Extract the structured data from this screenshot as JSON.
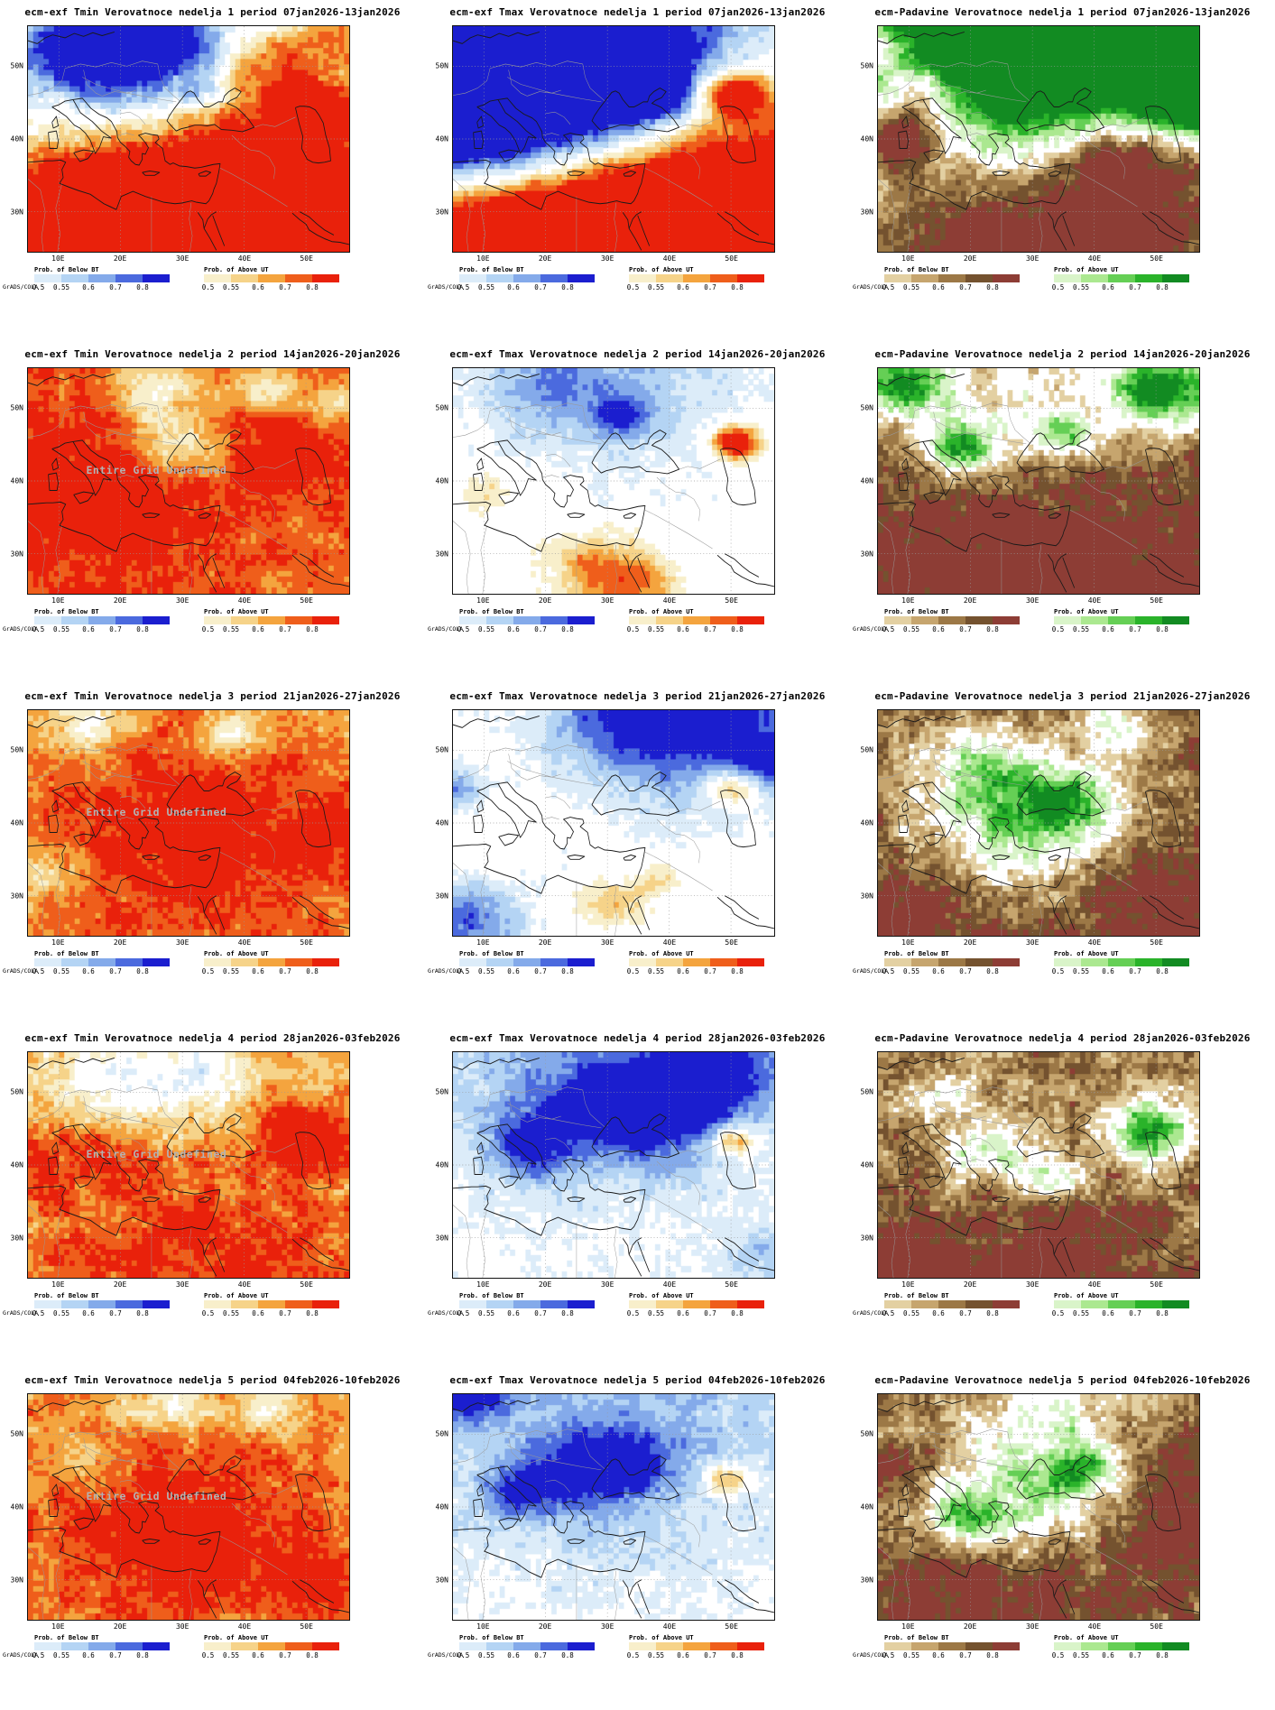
{
  "credit": "GrADS/COLA",
  "watermark": "Entire Grid Undefined",
  "axes": {
    "lat_labels": [
      "50N",
      "40N",
      "30N"
    ],
    "lon_labels": [
      "10E",
      "20E",
      "30E",
      "40E",
      "50E"
    ]
  },
  "legend": {
    "below_label": "Prob. of Below BT",
    "above_label": "Prob. of Above UT",
    "ticks": [
      "0.5",
      "0.55",
      "0.6",
      "0.7",
      "0.8"
    ]
  },
  "ramps": {
    "temp_below": [
      "#dcecf9",
      "#b4d4f4",
      "#84aaea",
      "#4b6ade",
      "#1b1ecf"
    ],
    "temp_above": [
      "#f8efcb",
      "#f6d389",
      "#f4a43e",
      "#ef5e1b",
      "#e9210b"
    ],
    "precip_below": [
      "#e3d0a2",
      "#c6a56e",
      "#9c7846",
      "#74522f",
      "#8d3d35"
    ],
    "precip_above": [
      "#d9f4c9",
      "#abe890",
      "#65cf55",
      "#2ab32a",
      "#128b22"
    ]
  },
  "panels": [
    {
      "id": "tmin-week1",
      "title": "ecm-exf Tmin Verovatnoce nedelja 1 period 07jan2026-13jan2026",
      "ramp": "temp",
      "wm": false,
      "seed": 11,
      "base": 0,
      "noise": 0.55,
      "jitter": 0.35,
      "blobs": [
        [
          0.3,
          0.15,
          0.2,
          -1.9
        ],
        [
          0.14,
          0.1,
          0.12,
          -1.1
        ],
        [
          0.47,
          0.07,
          0.1,
          -0.9
        ],
        [
          0.55,
          0.3,
          0.05,
          -0.8
        ],
        [
          0.5,
          1.02,
          0.42,
          2.0
        ],
        [
          0.13,
          0.93,
          0.25,
          1.5
        ],
        [
          0.83,
          0.75,
          0.3,
          1.6
        ],
        [
          0.88,
          0.36,
          0.08,
          1.8
        ],
        [
          0.75,
          0.2,
          0.1,
          0.9
        ],
        [
          0.95,
          0.05,
          0.1,
          1.1
        ]
      ]
    },
    {
      "id": "tmax-week1",
      "title": "ecm-exf Tmax Verovatnoce nedelja 1 period 07jan2026-13jan2026",
      "ramp": "temp",
      "wm": false,
      "seed": 21,
      "base": 0,
      "noise": 0.4,
      "jitter": 0.25,
      "blobs": [
        [
          0.18,
          0.08,
          0.45,
          -3.0
        ],
        [
          0.02,
          0.4,
          0.25,
          -2.2
        ],
        [
          0.45,
          0.22,
          0.22,
          -1.5
        ],
        [
          0.63,
          0.3,
          0.08,
          -1.5
        ],
        [
          0.55,
          1.08,
          0.5,
          2.6
        ],
        [
          0.15,
          1.0,
          0.3,
          2.0
        ],
        [
          0.92,
          0.8,
          0.28,
          1.8
        ],
        [
          0.88,
          0.3,
          0.07,
          2.3
        ]
      ]
    },
    {
      "id": "padavine-week1",
      "title": "ecm-Padavine Verovatnoce nedelja 1 period 07jan2026-13jan2026",
      "ramp": "precip",
      "wm": false,
      "seed": 31,
      "base": 0.1,
      "noise": 0.7,
      "jitter": 0.5,
      "blobs": [
        [
          0.5,
          0.12,
          0.4,
          2.0
        ],
        [
          0.8,
          0.22,
          0.28,
          1.9
        ],
        [
          0.25,
          0.15,
          0.2,
          1.2
        ],
        [
          0.96,
          0.38,
          0.1,
          1.5
        ],
        [
          0.5,
          1.05,
          0.45,
          -2.4
        ],
        [
          0.08,
          0.48,
          0.1,
          -2.2
        ],
        [
          0.14,
          0.27,
          0.09,
          -1.5
        ],
        [
          0.88,
          0.6,
          0.18,
          -1.6
        ],
        [
          0.7,
          0.55,
          0.12,
          -1.2
        ],
        [
          0.03,
          0.1,
          0.07,
          -1.2
        ]
      ]
    },
    {
      "id": "tmin-week2",
      "title": "ecm-exf Tmin Verovatnoce nedelja 2 period 14jan2026-20jan2026",
      "ramp": "temp",
      "wm": true,
      "seed": 41,
      "base": 1.2,
      "noise": 0.5,
      "jitter": 0.3,
      "blobs": [
        [
          0.45,
          0.33,
          0.1,
          -1.2
        ],
        [
          0.4,
          0.08,
          0.09,
          -1.1
        ],
        [
          0.74,
          0.1,
          0.07,
          -0.9
        ],
        [
          0.95,
          0.15,
          0.06,
          -0.8
        ],
        [
          0.25,
          0.55,
          0.28,
          0.6
        ],
        [
          0.85,
          0.4,
          0.12,
          0.5
        ]
      ]
    },
    {
      "id": "tmax-week2",
      "title": "ecm-exf Tmax Verovatnoce nedelja 2 period 14jan2026-20jan2026",
      "ramp": "temp",
      "wm": false,
      "seed": 51,
      "base": 0,
      "noise": 0.3,
      "jitter": 0.25,
      "blobs": [
        [
          0.5,
          0.02,
          0.3,
          -0.75
        ],
        [
          0.52,
          0.22,
          0.06,
          -1.1
        ],
        [
          0.3,
          0.1,
          0.12,
          -0.6
        ],
        [
          0.88,
          0.33,
          0.05,
          2.3
        ],
        [
          0.44,
          0.88,
          0.1,
          0.9
        ],
        [
          0.56,
          0.97,
          0.1,
          1.0
        ],
        [
          0.1,
          0.55,
          0.06,
          0.5
        ]
      ]
    },
    {
      "id": "padavine-week2",
      "title": "ecm-Padavine Verovatnoce nedelja 2 period 14jan2026-20jan2026",
      "ramp": "precip",
      "wm": false,
      "seed": 61,
      "base": -1.15,
      "noise": 0.7,
      "jitter": 0.55,
      "blobs": [
        [
          0.5,
          1.05,
          0.4,
          -0.9
        ],
        [
          0.45,
          0.17,
          0.22,
          1.2
        ],
        [
          0.07,
          0.07,
          0.1,
          2.6
        ],
        [
          0.9,
          0.09,
          0.13,
          2.8
        ],
        [
          0.26,
          0.36,
          0.08,
          2.2
        ],
        [
          0.6,
          0.3,
          0.06,
          1.4
        ]
      ]
    },
    {
      "id": "tmin-week3",
      "title": "ecm-exf Tmin Verovatnoce nedelja 3 period 21jan2026-27jan2026",
      "ramp": "temp",
      "wm": true,
      "seed": 71,
      "base": 1.05,
      "noise": 0.5,
      "jitter": 0.35,
      "blobs": [
        [
          0.5,
          0.55,
          0.3,
          0.7
        ],
        [
          0.2,
          0.07,
          0.08,
          -1.0
        ],
        [
          0.64,
          0.1,
          0.07,
          -0.8
        ],
        [
          0.07,
          0.7,
          0.1,
          -0.6
        ],
        [
          0.92,
          0.6,
          0.1,
          0.5
        ]
      ]
    },
    {
      "id": "tmax-week3",
      "title": "ecm-exf Tmax Verovatnoce nedelja 3 period 21jan2026-27jan2026",
      "ramp": "temp",
      "wm": false,
      "seed": 81,
      "base": 0,
      "noise": 0.3,
      "jitter": 0.25,
      "blobs": [
        [
          0.8,
          0.02,
          0.28,
          -1.4
        ],
        [
          0.55,
          0.0,
          0.18,
          -0.9
        ],
        [
          0.98,
          0.25,
          0.1,
          -1.0
        ],
        [
          0.0,
          0.35,
          0.07,
          -1.1
        ],
        [
          0.04,
          0.95,
          0.13,
          -1.3
        ],
        [
          0.88,
          0.35,
          0.06,
          1.6
        ],
        [
          0.5,
          0.85,
          0.07,
          0.8
        ],
        [
          0.65,
          0.75,
          0.05,
          0.6
        ]
      ]
    },
    {
      "id": "padavine-week3",
      "title": "ecm-Padavine Verovatnoce nedelja 3 period 21jan2026-27jan2026",
      "ramp": "precip",
      "wm": false,
      "seed": 91,
      "base": -1.0,
      "noise": 0.75,
      "jitter": 0.6,
      "blobs": [
        [
          0.05,
          0.95,
          0.18,
          -0.9
        ],
        [
          0.9,
          0.88,
          0.2,
          -0.8
        ],
        [
          0.45,
          0.5,
          0.18,
          1.9
        ],
        [
          0.3,
          0.25,
          0.12,
          1.3
        ],
        [
          0.6,
          0.4,
          0.1,
          1.5
        ],
        [
          0.75,
          0.07,
          0.08,
          1.2
        ]
      ]
    },
    {
      "id": "tmin-week4",
      "title": "ecm-exf Tmin Verovatnoce nedelja 4 period 28jan2026-03feb2026",
      "ramp": "temp",
      "wm": true,
      "seed": 101,
      "base": 0.9,
      "noise": 0.55,
      "jitter": 0.4,
      "blobs": [
        [
          0.3,
          0.13,
          0.16,
          -1.0
        ],
        [
          0.55,
          0.07,
          0.1,
          -0.8
        ],
        [
          0.87,
          0.38,
          0.09,
          1.3
        ],
        [
          0.5,
          1.0,
          0.35,
          0.7
        ],
        [
          0.15,
          0.45,
          0.15,
          0.4
        ]
      ]
    },
    {
      "id": "tmax-week4",
      "title": "ecm-exf Tmax Verovatnoce nedelja 4 period 28jan2026-03feb2026",
      "ramp": "temp",
      "wm": false,
      "seed": 111,
      "base": 0,
      "noise": 0.35,
      "jitter": 0.3,
      "blobs": [
        [
          0.5,
          0.05,
          0.45,
          -1.0
        ],
        [
          0.25,
          0.42,
          0.1,
          -1.1
        ],
        [
          0.62,
          0.3,
          0.12,
          -1.2
        ],
        [
          0.78,
          0.1,
          0.14,
          -1.4
        ],
        [
          0.4,
          0.25,
          0.1,
          -0.9
        ],
        [
          0.97,
          0.92,
          0.1,
          -0.7
        ],
        [
          0.87,
          0.4,
          0.05,
          1.5
        ]
      ]
    },
    {
      "id": "padavine-week4",
      "title": "ecm-Padavine Verovatnoce nedelja 4 period 28jan2026-03feb2026",
      "ramp": "precip",
      "wm": false,
      "seed": 121,
      "base": -0.95,
      "noise": 0.8,
      "jitter": 0.65,
      "blobs": [
        [
          0.85,
          0.35,
          0.1,
          2.2
        ],
        [
          0.35,
          0.45,
          0.1,
          1.5
        ],
        [
          0.55,
          0.55,
          0.08,
          1.3
        ],
        [
          0.2,
          0.2,
          0.08,
          1.1
        ],
        [
          0.5,
          1.05,
          0.32,
          -0.8
        ],
        [
          0.03,
          0.9,
          0.12,
          -0.8
        ]
      ]
    },
    {
      "id": "tmin-week5",
      "title": "ecm-exf Tmin Verovatnoce nedelja 5 period 04feb2026-10feb2026",
      "ramp": "temp",
      "wm": true,
      "seed": 131,
      "base": 1.0,
      "noise": 0.5,
      "jitter": 0.35,
      "blobs": [
        [
          0.45,
          0.6,
          0.28,
          0.75
        ],
        [
          0.45,
          0.05,
          0.09,
          -0.9
        ],
        [
          0.74,
          0.07,
          0.07,
          -0.7
        ],
        [
          0.2,
          0.3,
          0.1,
          -0.4
        ],
        [
          0.9,
          0.85,
          0.12,
          0.5
        ]
      ]
    },
    {
      "id": "tmax-week5",
      "title": "ecm-exf Tmax Verovatnoce nedelja 5 period 04feb2026-10feb2026",
      "ramp": "temp",
      "wm": false,
      "seed": 141,
      "base": 0,
      "noise": 0.35,
      "jitter": 0.3,
      "blobs": [
        [
          0.5,
          0.12,
          0.5,
          -0.85
        ],
        [
          0.38,
          0.35,
          0.12,
          -1.0
        ],
        [
          0.56,
          0.3,
          0.09,
          -0.9
        ],
        [
          0.2,
          0.45,
          0.08,
          -0.8
        ],
        [
          0.85,
          0.38,
          0.05,
          1.5
        ],
        [
          0.05,
          0.02,
          0.08,
          -1.2
        ]
      ]
    },
    {
      "id": "padavine-week5",
      "title": "ecm-Padavine Verovatnoce nedelja 5 period 04feb2026-10feb2026",
      "ramp": "precip",
      "wm": false,
      "seed": 151,
      "base": -1.0,
      "noise": 0.8,
      "jitter": 0.6,
      "blobs": [
        [
          0.88,
          0.55,
          0.2,
          -0.9
        ],
        [
          0.3,
          0.95,
          0.25,
          -0.85
        ],
        [
          0.05,
          0.3,
          0.08,
          -0.8
        ],
        [
          0.45,
          0.45,
          0.2,
          1.6
        ],
        [
          0.65,
          0.35,
          0.1,
          1.4
        ],
        [
          0.55,
          0.08,
          0.15,
          0.9
        ],
        [
          0.25,
          0.55,
          0.08,
          1.3
        ]
      ]
    }
  ]
}
